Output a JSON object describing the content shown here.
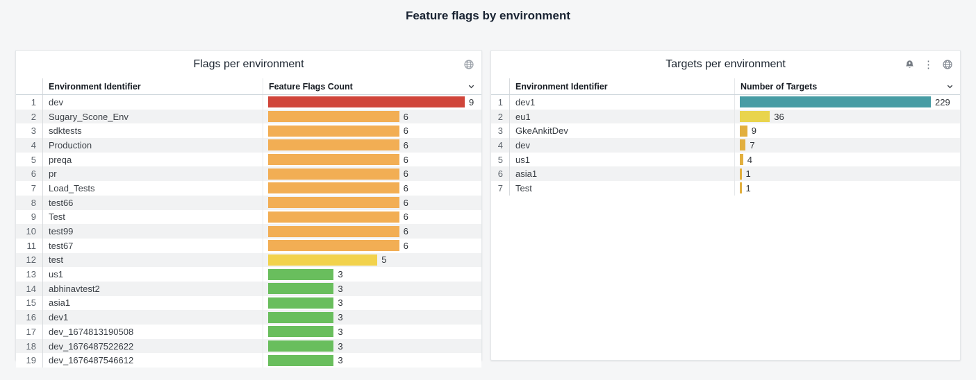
{
  "page": {
    "title": "Feature flags by environment",
    "background": "#f5f6f7"
  },
  "panels": [
    {
      "title": "Flags per environment",
      "icons": [
        "globe-icon"
      ],
      "columns": {
        "id": "Environment Identifier",
        "value": "Feature Flags Count"
      },
      "max_value": 9,
      "rows": [
        {
          "n": 1,
          "name": "dev",
          "value": 9,
          "color": "#D0453A"
        },
        {
          "n": 2,
          "name": "Sugary_Scone_Env",
          "value": 6,
          "color": "#F2AE54"
        },
        {
          "n": 3,
          "name": "sdktests",
          "value": 6,
          "color": "#F2AE54"
        },
        {
          "n": 4,
          "name": "Production",
          "value": 6,
          "color": "#F2AE54"
        },
        {
          "n": 5,
          "name": "preqa",
          "value": 6,
          "color": "#F2AE54"
        },
        {
          "n": 6,
          "name": "pr",
          "value": 6,
          "color": "#F2AE54"
        },
        {
          "n": 7,
          "name": "Load_Tests",
          "value": 6,
          "color": "#F2AE54"
        },
        {
          "n": 8,
          "name": "test66",
          "value": 6,
          "color": "#F2AE54"
        },
        {
          "n": 9,
          "name": "Test",
          "value": 6,
          "color": "#F2AE54"
        },
        {
          "n": 10,
          "name": "test99",
          "value": 6,
          "color": "#F2AE54"
        },
        {
          "n": 11,
          "name": "test67",
          "value": 6,
          "color": "#F2AE54"
        },
        {
          "n": 12,
          "name": "test",
          "value": 5,
          "color": "#F2D24C"
        },
        {
          "n": 13,
          "name": "us1",
          "value": 3,
          "color": "#69BE5D"
        },
        {
          "n": 14,
          "name": "abhinavtest2",
          "value": 3,
          "color": "#69BE5D"
        },
        {
          "n": 15,
          "name": "asia1",
          "value": 3,
          "color": "#69BE5D"
        },
        {
          "n": 16,
          "name": "dev1",
          "value": 3,
          "color": "#69BE5D"
        },
        {
          "n": 17,
          "name": "dev_1674813190508",
          "value": 3,
          "color": "#69BE5D"
        },
        {
          "n": 18,
          "name": "dev_1676487522622",
          "value": 3,
          "color": "#69BE5D"
        },
        {
          "n": 19,
          "name": "dev_1676487546612",
          "value": 3,
          "color": "#69BE5D"
        }
      ]
    },
    {
      "title": "Targets per environment",
      "icons": [
        "alert-bell-icon",
        "kebab-menu-icon",
        "globe-icon"
      ],
      "columns": {
        "id": "Environment Identifier",
        "value": "Number of Targets"
      },
      "max_value": 229,
      "rows": [
        {
          "n": 1,
          "name": "dev1",
          "value": 229,
          "color": "#479CA4"
        },
        {
          "n": 2,
          "name": "eu1",
          "value": 36,
          "color": "#E9D44D"
        },
        {
          "n": 3,
          "name": "GkeAnkitDev",
          "value": 9,
          "color": "#E2AF3E"
        },
        {
          "n": 4,
          "name": "dev",
          "value": 7,
          "color": "#E2AF3E"
        },
        {
          "n": 5,
          "name": "us1",
          "value": 4,
          "color": "#E2AF3E"
        },
        {
          "n": 6,
          "name": "asia1",
          "value": 1,
          "color": "#E2AF3E"
        },
        {
          "n": 7,
          "name": "Test",
          "value": 1,
          "color": "#E2AF3E"
        }
      ]
    }
  ],
  "chart_data": [
    {
      "type": "bar",
      "orientation": "horizontal",
      "title": "Flags per environment",
      "xlabel": "Environment Identifier",
      "ylabel": "Feature Flags Count",
      "categories": [
        "dev",
        "Sugary_Scone_Env",
        "sdktests",
        "Production",
        "preqa",
        "pr",
        "Load_Tests",
        "test66",
        "Test",
        "test99",
        "test67",
        "test",
        "us1",
        "abhinavtest2",
        "asia1",
        "dev1",
        "dev_1674813190508",
        "dev_1676487522622",
        "dev_1676487546612"
      ],
      "values": [
        9,
        6,
        6,
        6,
        6,
        6,
        6,
        6,
        6,
        6,
        6,
        5,
        3,
        3,
        3,
        3,
        3,
        3,
        3
      ],
      "xlim": [
        0,
        9
      ],
      "grid": false,
      "legend": false
    },
    {
      "type": "bar",
      "orientation": "horizontal",
      "title": "Targets per environment",
      "xlabel": "Environment Identifier",
      "ylabel": "Number of Targets",
      "categories": [
        "dev1",
        "eu1",
        "GkeAnkitDev",
        "dev",
        "us1",
        "asia1",
        "Test"
      ],
      "values": [
        229,
        36,
        9,
        7,
        4,
        1,
        1
      ],
      "xlim": [
        0,
        229
      ],
      "grid": false,
      "legend": false
    }
  ]
}
